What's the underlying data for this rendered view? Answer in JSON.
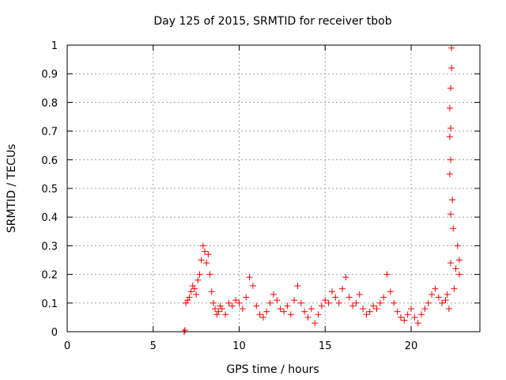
{
  "chart_data": {
    "type": "scatter",
    "title": "Day 125 of 2015, SRMTID for receiver tbob",
    "xlabel": "GPS time / hours",
    "ylabel": "SRMTID / TECUs",
    "xlim": [
      0,
      24
    ],
    "ylim": [
      0,
      1
    ],
    "xticks": [
      0,
      5,
      10,
      15,
      20
    ],
    "xtick_labels": [
      "0",
      "5",
      "10",
      "15",
      "20"
    ],
    "yticks": [
      0,
      0.1,
      0.2,
      0.3,
      0.4,
      0.5,
      0.6,
      0.7,
      0.8,
      0.9,
      1
    ],
    "ytick_labels": [
      "0",
      "0.1",
      "0.2",
      "0.3",
      "0.4",
      "0.5",
      "0.6",
      "0.7",
      "0.8",
      "0.9",
      "1"
    ],
    "grid": true,
    "marker": "plus",
    "color": "#ff0000",
    "series": [
      {
        "name": "SRMTID",
        "points": [
          [
            6.8,
            0.0
          ],
          [
            6.85,
            0.005
          ],
          [
            6.9,
            0.1
          ],
          [
            7.0,
            0.11
          ],
          [
            7.1,
            0.12
          ],
          [
            7.2,
            0.14
          ],
          [
            7.3,
            0.16
          ],
          [
            7.4,
            0.15
          ],
          [
            7.5,
            0.13
          ],
          [
            7.6,
            0.18
          ],
          [
            7.7,
            0.2
          ],
          [
            7.8,
            0.25
          ],
          [
            7.9,
            0.3
          ],
          [
            8.0,
            0.28
          ],
          [
            8.1,
            0.24
          ],
          [
            8.2,
            0.27
          ],
          [
            8.3,
            0.2
          ],
          [
            8.4,
            0.14
          ],
          [
            8.5,
            0.1
          ],
          [
            8.6,
            0.08
          ],
          [
            8.7,
            0.06
          ],
          [
            8.8,
            0.07
          ],
          [
            8.9,
            0.09
          ],
          [
            9.0,
            0.08
          ],
          [
            9.2,
            0.06
          ],
          [
            9.4,
            0.1
          ],
          [
            9.6,
            0.09
          ],
          [
            9.8,
            0.11
          ],
          [
            10.0,
            0.1
          ],
          [
            10.2,
            0.08
          ],
          [
            10.4,
            0.12
          ],
          [
            10.6,
            0.19
          ],
          [
            10.8,
            0.16
          ],
          [
            11.0,
            0.09
          ],
          [
            11.2,
            0.06
          ],
          [
            11.4,
            0.05
          ],
          [
            11.6,
            0.07
          ],
          [
            11.8,
            0.1
          ],
          [
            12.0,
            0.13
          ],
          [
            12.2,
            0.11
          ],
          [
            12.4,
            0.08
          ],
          [
            12.6,
            0.07
          ],
          [
            12.8,
            0.09
          ],
          [
            13.0,
            0.06
          ],
          [
            13.2,
            0.11
          ],
          [
            13.4,
            0.16
          ],
          [
            13.6,
            0.1
          ],
          [
            13.8,
            0.07
          ],
          [
            14.0,
            0.05
          ],
          [
            14.2,
            0.08
          ],
          [
            14.4,
            0.03
          ],
          [
            14.6,
            0.06
          ],
          [
            14.8,
            0.09
          ],
          [
            15.0,
            0.11
          ],
          [
            15.2,
            0.1
          ],
          [
            15.4,
            0.14
          ],
          [
            15.6,
            0.12
          ],
          [
            15.8,
            0.1
          ],
          [
            16.0,
            0.15
          ],
          [
            16.2,
            0.19
          ],
          [
            16.4,
            0.12
          ],
          [
            16.6,
            0.09
          ],
          [
            16.8,
            0.1
          ],
          [
            17.0,
            0.13
          ],
          [
            17.2,
            0.08
          ],
          [
            17.4,
            0.06
          ],
          [
            17.6,
            0.07
          ],
          [
            17.8,
            0.09
          ],
          [
            18.0,
            0.08
          ],
          [
            18.2,
            0.1
          ],
          [
            18.4,
            0.12
          ],
          [
            18.6,
            0.2
          ],
          [
            18.8,
            0.14
          ],
          [
            19.0,
            0.1
          ],
          [
            19.2,
            0.07
          ],
          [
            19.4,
            0.05
          ],
          [
            19.6,
            0.04
          ],
          [
            19.8,
            0.06
          ],
          [
            20.0,
            0.08
          ],
          [
            20.2,
            0.05
          ],
          [
            20.4,
            0.03
          ],
          [
            20.6,
            0.06
          ],
          [
            20.8,
            0.08
          ],
          [
            21.0,
            0.1
          ],
          [
            21.2,
            0.13
          ],
          [
            21.4,
            0.15
          ],
          [
            21.6,
            0.12
          ],
          [
            21.8,
            0.1
          ],
          [
            22.0,
            0.11
          ],
          [
            22.1,
            0.13
          ],
          [
            22.2,
            0.08
          ],
          [
            22.3,
            0.24
          ],
          [
            22.35,
            0.99
          ],
          [
            22.35,
            0.92
          ],
          [
            22.3,
            0.85
          ],
          [
            22.25,
            0.78
          ],
          [
            22.3,
            0.71
          ],
          [
            22.25,
            0.68
          ],
          [
            22.3,
            0.6
          ],
          [
            22.25,
            0.55
          ],
          [
            22.4,
            0.46
          ],
          [
            22.3,
            0.41
          ],
          [
            22.45,
            0.36
          ],
          [
            22.5,
            0.15
          ],
          [
            22.6,
            0.22
          ],
          [
            22.7,
            0.3
          ],
          [
            22.8,
            0.25
          ],
          [
            22.8,
            0.2
          ]
        ]
      }
    ]
  }
}
